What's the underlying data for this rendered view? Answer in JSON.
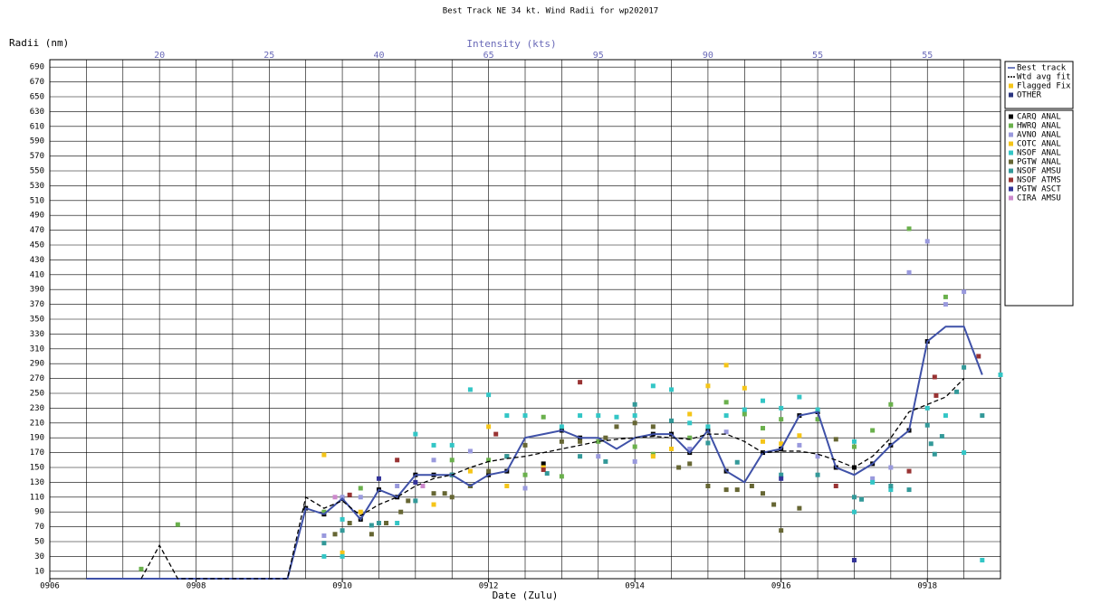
{
  "chart_data": {
    "type": "scatter",
    "title": "Best Track NE 34 kt. Wind Radii for wp202017",
    "ylabel": "Radii (nm)",
    "xlabel": "Date (Zulu)",
    "top_axis": {
      "label": "Intensity (kts)",
      "color": "#6a6ab8",
      "ticks": [
        {
          "value": 7.5,
          "label": "20"
        },
        {
          "value": 9,
          "label": "25"
        },
        {
          "value": 10.5,
          "label": "40"
        },
        {
          "value": 12,
          "label": "65"
        },
        {
          "value": 13.5,
          "label": "95"
        },
        {
          "value": 15,
          "label": "90"
        },
        {
          "value": 16.5,
          "label": "55"
        },
        {
          "value": 18,
          "label": "55"
        }
      ]
    },
    "xlim": [
      6,
      19
    ],
    "ylim": [
      0,
      700
    ],
    "xticks": [
      {
        "value": 6,
        "label": "0906"
      },
      {
        "value": 8,
        "label": "0908"
      },
      {
        "value": 10,
        "label": "0910"
      },
      {
        "value": 12,
        "label": "0912"
      },
      {
        "value": 14,
        "label": "0914"
      },
      {
        "value": 16,
        "label": "0916"
      },
      {
        "value": 18,
        "label": "0918"
      }
    ],
    "xgrid": [
      6.5,
      7,
      7.5,
      8,
      8.5,
      9,
      9.5,
      10,
      10.5,
      11,
      11.5,
      12,
      12.5,
      13,
      13.5,
      14,
      14.5,
      15,
      15.5,
      16,
      16.5,
      17,
      17.5,
      18,
      18.5
    ],
    "yticks": [
      10,
      30,
      50,
      70,
      90,
      110,
      130,
      150,
      170,
      190,
      210,
      230,
      250,
      270,
      290,
      310,
      330,
      350,
      370,
      390,
      410,
      430,
      450,
      470,
      490,
      510,
      530,
      550,
      570,
      590,
      610,
      630,
      650,
      670,
      690
    ],
    "grid": true,
    "series": [
      {
        "name": "Best track",
        "style": "line",
        "color": "#3f51a8",
        "x": [
          6.5,
          9.25,
          9.5,
          9.75,
          10,
          10.25,
          10.5,
          10.75,
          11,
          11.25,
          11.5,
          11.75,
          12,
          12.25,
          12.5,
          12.75,
          13,
          13.25,
          13.5,
          13.75,
          14,
          14.25,
          14.5,
          14.75,
          15,
          15.25,
          15.5,
          15.75,
          16,
          16.25,
          16.5,
          16.75,
          17,
          17.25,
          17.5,
          17.75,
          18,
          18.25,
          18.5,
          18.75
        ],
        "values": [
          0,
          0,
          95,
          87,
          108,
          80,
          120,
          110,
          140,
          140,
          140,
          125,
          140,
          145,
          190,
          195,
          200,
          190,
          190,
          175,
          190,
          195,
          195,
          170,
          200,
          145,
          130,
          170,
          175,
          220,
          225,
          150,
          140,
          155,
          180,
          200,
          320,
          340,
          340,
          275
        ]
      },
      {
        "name": "Wtd avg fit",
        "style": "dashed",
        "color": "#000000",
        "x": [
          7.25,
          7.5,
          7.75,
          9.25,
          9.5,
          9.75,
          10,
          10.25,
          10.5,
          10.75,
          11,
          11.25,
          11.5,
          11.75,
          12,
          12.25,
          12.5,
          12.75,
          13,
          13.25,
          13.5,
          13.75,
          14,
          14.25,
          14.5,
          14.75,
          15,
          15.25,
          15.5,
          15.75,
          16,
          16.25,
          16.5,
          16.75,
          17,
          17.25,
          17.5,
          17.75,
          18,
          18.25,
          18.5
        ],
        "values": [
          0,
          45,
          0,
          0,
          110,
          95,
          105,
          85,
          100,
          110,
          125,
          135,
          140,
          150,
          158,
          162,
          165,
          170,
          175,
          180,
          185,
          188,
          190,
          192,
          190,
          188,
          195,
          195,
          185,
          170,
          172,
          172,
          168,
          160,
          150,
          165,
          190,
          225,
          235,
          245,
          270
        ]
      },
      {
        "name": "Flagged Fix",
        "style": "square",
        "color": "#f5c518",
        "x": [],
        "values": []
      },
      {
        "name": "OTHER",
        "style": "square",
        "color": "#2a3480",
        "x": [],
        "values": []
      },
      {
        "name": "CARQ ANAL",
        "style": "square",
        "color": "#000000",
        "x": [
          9.5,
          9.75,
          10,
          10.25,
          10.5,
          10.75,
          11,
          11.25,
          11.5,
          11.75,
          12,
          12.25,
          12.75,
          13,
          13.25,
          14.25,
          14.5,
          14.75,
          15,
          15.25,
          15.75,
          16,
          16.25,
          16.5,
          16.75,
          17,
          17.25,
          17.5,
          17.75,
          18
        ],
        "values": [
          95,
          87,
          108,
          80,
          120,
          110,
          140,
          140,
          140,
          125,
          140,
          145,
          155,
          200,
          190,
          195,
          195,
          170,
          200,
          145,
          170,
          175,
          220,
          225,
          150,
          150,
          155,
          180,
          200,
          320
        ]
      },
      {
        "name": "HWRQ ANAL",
        "style": "square",
        "color": "#6ab04c",
        "x": [
          7.25,
          7.75,
          9.75,
          10.25,
          11.5,
          12,
          12.5,
          12.75,
          13,
          13.5,
          14,
          14.25,
          14.75,
          15.25,
          15.5,
          15.75,
          16,
          16.5,
          17,
          17.25,
          17.5,
          17.75,
          18.25
        ],
        "values": [
          13,
          73,
          90,
          122,
          160,
          160,
          140,
          218,
          138,
          185,
          178,
          168,
          190,
          238,
          222,
          203,
          215,
          215,
          178,
          200,
          235,
          472,
          380
        ]
      },
      {
        "name": "AVNO ANAL",
        "style": "square",
        "color": "#9999dd",
        "x": [
          9.75,
          10,
          10.25,
          10.75,
          11.25,
          11.75,
          12.5,
          13.5,
          14,
          14.75,
          15.25,
          16.25,
          16.5,
          17.25,
          17.5,
          17.75,
          18,
          18.25,
          18.5
        ],
        "values": [
          58,
          110,
          110,
          125,
          160,
          172,
          122,
          165,
          158,
          175,
          198,
          180,
          165,
          135,
          150,
          413,
          455,
          370,
          387
        ]
      },
      {
        "name": "COTC ANAL",
        "style": "square",
        "color": "#f5c518",
        "x": [
          9.75,
          10,
          10.25,
          11.25,
          11.75,
          12,
          12.25,
          12.75,
          14.25,
          14.5,
          14.75,
          15,
          15.25,
          15.5,
          15.75,
          16,
          16.25
        ],
        "values": [
          167,
          35,
          90,
          100,
          145,
          205,
          125,
          150,
          165,
          175,
          222,
          260,
          288,
          257,
          185,
          182,
          193
        ]
      },
      {
        "name": "NSOF ANAL",
        "style": "square",
        "color": "#33c6c6",
        "x": [
          9.75,
          10,
          10,
          10.75,
          11,
          11.25,
          11.5,
          11.75,
          12,
          12.25,
          12.5,
          13,
          13.25,
          13.5,
          13.75,
          14,
          14.25,
          14.5,
          14.75,
          15,
          15.25,
          15.5,
          15.75,
          16,
          16.25,
          16.5,
          17,
          17,
          17.25,
          17.5,
          18,
          18.25,
          18.5,
          18.75,
          19
        ],
        "values": [
          30,
          30,
          80,
          75,
          195,
          180,
          180,
          255,
          248,
          220,
          220,
          205,
          220,
          220,
          218,
          220,
          260,
          255,
          210,
          205,
          220,
          228,
          240,
          230,
          245,
          228,
          185,
          90,
          130,
          120,
          230,
          220,
          170,
          25,
          275
        ]
      },
      {
        "name": "PGTW ANAL",
        "style": "square",
        "color": "#666633",
        "x": [
          9.9,
          10.1,
          10.4,
          10.6,
          10.8,
          10.9,
          11.25,
          11.4,
          11.5,
          11.75,
          12,
          12.25,
          12.5,
          13,
          13.25,
          13.6,
          13.75,
          14,
          14.25,
          14.6,
          14.75,
          15,
          15.25,
          15.4,
          15.6,
          15.75,
          15.9,
          16,
          16.25,
          16.75
        ],
        "values": [
          60,
          75,
          60,
          75,
          90,
          105,
          115,
          115,
          110,
          125,
          145,
          165,
          180,
          185,
          185,
          190,
          205,
          210,
          205,
          150,
          155,
          125,
          120,
          120,
          125,
          115,
          100,
          65,
          95,
          188
        ]
      },
      {
        "name": "NSOF AMSU",
        "style": "square",
        "color": "#339999",
        "x": [
          9.75,
          10,
          10.4,
          10.5,
          11,
          11.5,
          12.25,
          12.8,
          13.25,
          13.6,
          14,
          14.5,
          15,
          15.4,
          16,
          16.5,
          17,
          17.1,
          17.5,
          17.75,
          18,
          18.05,
          18.1,
          18.2,
          18.4,
          18.5,
          18.75
        ],
        "values": [
          48,
          65,
          72,
          75,
          105,
          140,
          165,
          142,
          165,
          158,
          235,
          213,
          183,
          157,
          140,
          140,
          110,
          107,
          125,
          120,
          207,
          182,
          168,
          192,
          252,
          285,
          220
        ]
      },
      {
        "name": "NSOF ATMS",
        "style": "square",
        "color": "#993333",
        "x": [
          10.1,
          10.75,
          12.1,
          12.75,
          13.25,
          16.75,
          17.75,
          18.1,
          18.12,
          18.7
        ],
        "values": [
          113,
          160,
          195,
          147,
          265,
          125,
          145,
          272,
          247,
          300
        ]
      },
      {
        "name": "PGTW ASCT",
        "style": "square",
        "color": "#333399",
        "x": [
          10.5,
          11,
          16,
          17
        ],
        "values": [
          135,
          130,
          135,
          25
        ]
      },
      {
        "name": "CIRA AMSU",
        "style": "square",
        "color": "#cc88cc",
        "x": [
          9.9,
          11.1
        ],
        "values": [
          110,
          125
        ]
      }
    ]
  }
}
